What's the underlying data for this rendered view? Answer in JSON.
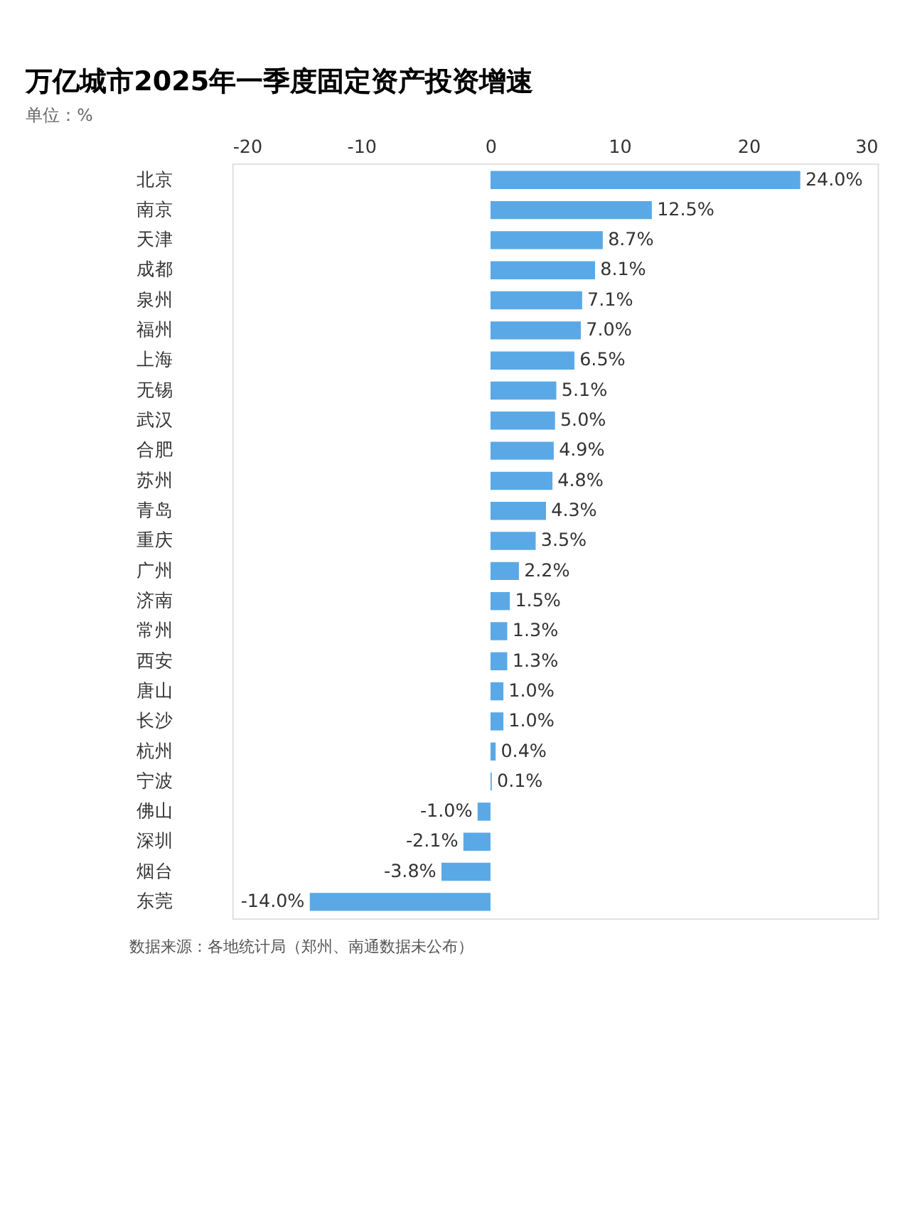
{
  "chart_data": {
    "type": "bar",
    "orientation": "horizontal",
    "title": "万亿城市2025年一季度固定资产投资增速",
    "subtitle": "单位：%",
    "categories": [
      "北京",
      "南京",
      "天津",
      "成都",
      "泉州",
      "福州",
      "上海",
      "无锡",
      "武汉",
      "合肥",
      "苏州",
      "青岛",
      "重庆",
      "广州",
      "济南",
      "常州",
      "西安",
      "唐山",
      "长沙",
      "杭州",
      "宁波",
      "佛山",
      "深圳",
      "烟台",
      "东莞"
    ],
    "values": [
      24.0,
      12.5,
      8.7,
      8.1,
      7.1,
      7.0,
      6.5,
      5.1,
      5.0,
      4.9,
      4.8,
      4.3,
      3.5,
      2.2,
      1.5,
      1.3,
      1.3,
      1.0,
      1.0,
      0.4,
      0.1,
      -1.0,
      -2.1,
      -3.8,
      -14.0
    ],
    "value_labels": [
      "24.0%",
      "12.5%",
      "8.7%",
      "8.1%",
      "7.1%",
      "7.0%",
      "6.5%",
      "5.1%",
      "5.0%",
      "4.9%",
      "4.8%",
      "4.3%",
      "3.5%",
      "2.2%",
      "1.5%",
      "1.3%",
      "1.3%",
      "1.0%",
      "1.0%",
      "0.4%",
      "0.1%",
      "-1.0%",
      "-2.1%",
      "-3.8%",
      "-14.0%"
    ],
    "color": "#5aa9e6",
    "xlim": [
      -20,
      30
    ],
    "xticks": [
      -20,
      -10,
      0,
      10,
      20,
      30
    ],
    "grid": false,
    "annotations": [
      "数据来源：各地统计局（郑州、南通数据未公布）"
    ]
  }
}
